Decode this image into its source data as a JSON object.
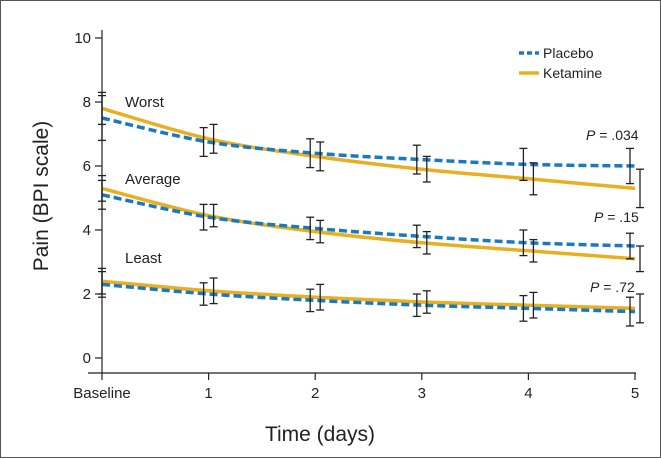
{
  "chart_data": {
    "type": "line",
    "xlabel": "Time (days)",
    "ylabel": "Pain (BPI scale)",
    "x": [
      0,
      1,
      2,
      3,
      4,
      5
    ],
    "x_tick_labels": [
      "Baseline",
      "1",
      "2",
      "3",
      "4",
      "5"
    ],
    "ylim": [
      0,
      10
    ],
    "y_ticks": [
      0,
      2,
      4,
      6,
      8,
      10
    ],
    "grid": false,
    "legend_position": "top-right",
    "legend": [
      {
        "name": "Placebo",
        "color": "#1a7abf",
        "style": "dashed"
      },
      {
        "name": "Ketamine",
        "color": "#e8b020",
        "style": "solid"
      }
    ],
    "groups": [
      {
        "label": "Worst",
        "p_prefix": "P",
        "p_value": "= .034",
        "series": [
          {
            "name": "Placebo",
            "values": [
              7.5,
              6.75,
              6.4,
              6.2,
              6.05,
              6.0
            ],
            "errors": [
              0.7,
              0.45,
              0.45,
              0.45,
              0.5,
              0.55
            ]
          },
          {
            "name": "Ketamine",
            "values": [
              7.8,
              6.85,
              6.3,
              5.9,
              5.6,
              5.3
            ],
            "errors": [
              0.5,
              0.45,
              0.45,
              0.4,
              0.5,
              0.6
            ]
          }
        ]
      },
      {
        "label": "Average",
        "p_prefix": "P",
        "p_value": "= .15",
        "series": [
          {
            "name": "Placebo",
            "values": [
              5.1,
              4.4,
              4.05,
              3.8,
              3.6,
              3.5
            ],
            "errors": [
              0.45,
              0.4,
              0.35,
              0.35,
              0.4,
              0.4
            ]
          },
          {
            "name": "Ketamine",
            "values": [
              5.3,
              4.45,
              3.95,
              3.6,
              3.35,
              3.1
            ],
            "errors": [
              0.4,
              0.35,
              0.35,
              0.35,
              0.35,
              0.4
            ]
          }
        ]
      },
      {
        "label": "Least",
        "p_prefix": "P",
        "p_value": "= .72",
        "series": [
          {
            "name": "Placebo",
            "values": [
              2.3,
              2.0,
              1.8,
              1.65,
              1.55,
              1.45
            ],
            "errors": [
              0.4,
              0.35,
              0.35,
              0.35,
              0.4,
              0.45
            ]
          },
          {
            "name": "Ketamine",
            "values": [
              2.4,
              2.1,
              1.9,
              1.75,
              1.65,
              1.55
            ],
            "errors": [
              0.4,
              0.4,
              0.4,
              0.35,
              0.4,
              0.45
            ]
          }
        ]
      }
    ]
  }
}
